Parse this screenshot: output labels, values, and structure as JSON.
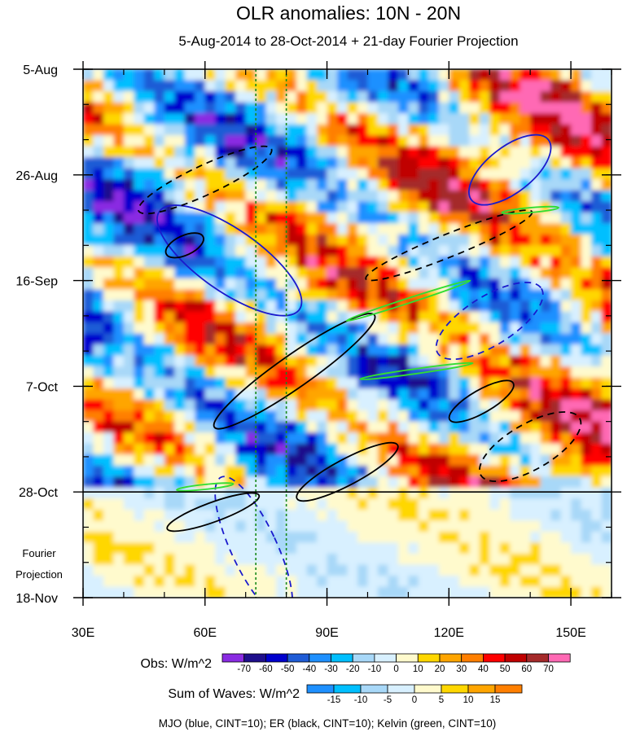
{
  "title": "OLR anomalies: 10N - 20N",
  "subtitle": "5-Aug-2014 to 28-Oct-2014 + 21-day Fourier Projection",
  "chart_data": {
    "type": "heatmap",
    "x_axis": {
      "range": [
        30,
        160
      ],
      "ticks": [
        {
          "value": 30,
          "label": "30E"
        },
        {
          "value": 60,
          "label": "60E"
        },
        {
          "value": 90,
          "label": "90E"
        },
        {
          "value": 120,
          "label": "120E"
        },
        {
          "value": 150,
          "label": "150E"
        }
      ],
      "minor_step": 10
    },
    "y_axis": {
      "range": [
        "5-Aug",
        "18-Nov"
      ],
      "range_days": [
        0,
        105
      ],
      "ticks": [
        {
          "day": 0,
          "label": "5-Aug"
        },
        {
          "day": 21,
          "label": "26-Aug"
        },
        {
          "day": 42,
          "label": "16-Sep"
        },
        {
          "day": 63,
          "label": "7-Oct"
        },
        {
          "day": 84,
          "label": "28-Oct"
        },
        {
          "day": 105,
          "label": "18-Nov"
        }
      ],
      "minor_step_days": 7,
      "inverted": true
    },
    "projection": {
      "label": [
        "Fourier",
        "Projection"
      ],
      "boundary_day": 84
    },
    "reference_lines": [
      {
        "type": "vertical",
        "x": 72.5,
        "color": "#1a8a1a",
        "style": "dotted"
      },
      {
        "type": "vertical",
        "x": 80,
        "color": "#1a8a1a",
        "style": "dotted"
      }
    ],
    "colorbars": [
      {
        "label": "Obs: W/m^2",
        "levels": [
          "-70",
          "-60",
          "-50",
          "-40",
          "-30",
          "-20",
          "-10",
          "0",
          "10",
          "20",
          "30",
          "40",
          "50",
          "60",
          "70"
        ],
        "colors": [
          "#8a2be2",
          "#1e0f8c",
          "#0000cd",
          "#1f5cd6",
          "#1e90ff",
          "#00bfff",
          "#a8d8f8",
          "#d8f0ff",
          "#fffacd",
          "#ffd700",
          "#ffa500",
          "#ff7f00",
          "#ff0000",
          "#c00000",
          "#a52a2a",
          "#ff69b4"
        ]
      },
      {
        "label": "Sum of Waves: W/m^2",
        "levels": [
          "-15",
          "-10",
          "-5",
          "0",
          "5",
          "10",
          "15"
        ],
        "colors": [
          "#1e90ff",
          "#00bfff",
          "#a8d8f8",
          "#d8f0ff",
          "#fffacd",
          "#ffd700",
          "#ffa500",
          "#ff7f00"
        ]
      }
    ],
    "contours_legend": "MJO (blue, CINT=10); ER (black, CINT=10); Kelvin (green, CINT=10)",
    "series_colors": {
      "MJO": "#1a1acd",
      "ER": "#000000",
      "Kelvin": "#33dd33"
    }
  }
}
